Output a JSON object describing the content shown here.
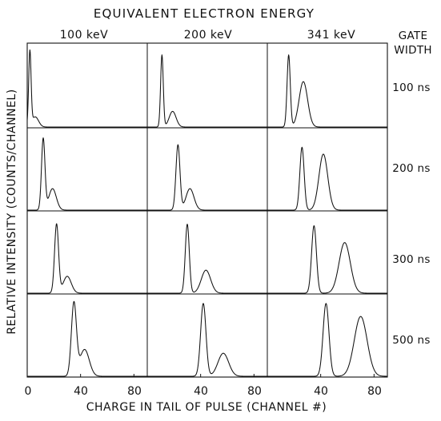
{
  "chart_data": {
    "type": "line",
    "title": "EQUIVALENT ELECTRON ENERGY",
    "xlabel": "CHARGE IN TAIL OF PULSE (CHANNEL #)",
    "ylabel": "RELATIVE INTENSITY (COUNTS/CHANNEL)",
    "column_header": [
      "100 keV",
      "200 keV",
      "341 keV"
    ],
    "row_header_title": [
      "GATE",
      "WIDTH"
    ],
    "row_header": [
      "100 ns",
      "200 ns",
      "300 ns",
      "500 ns"
    ],
    "x_ticks": [
      [
        "0",
        "40",
        "80"
      ],
      [
        "40",
        "80"
      ],
      [
        "40",
        "80"
      ]
    ],
    "xlim": [
      0,
      90
    ],
    "grid": false,
    "panels": [
      [
        {
          "peaks": [
            {
              "center": 2,
              "height": 0.95,
              "width": 0.9
            },
            {
              "center": 6,
              "height": 0.13,
              "width": 2.5
            }
          ]
        },
        {
          "peaks": [
            {
              "center": 11,
              "height": 0.92,
              "width": 1.0
            },
            {
              "center": 19,
              "height": 0.2,
              "width": 2.6
            }
          ]
        },
        {
          "peaks": [
            {
              "center": 16,
              "height": 0.92,
              "width": 1.2
            },
            {
              "center": 27,
              "height": 0.58,
              "width": 3.2
            }
          ]
        }
      ],
      [
        {
          "peaks": [
            {
              "center": 12,
              "height": 0.93,
              "width": 1.3
            },
            {
              "center": 19,
              "height": 0.28,
              "width": 2.8
            }
          ]
        },
        {
          "peaks": [
            {
              "center": 23,
              "height": 0.85,
              "width": 1.5
            },
            {
              "center": 32,
              "height": 0.28,
              "width": 3.0
            }
          ]
        },
        {
          "peaks": [
            {
              "center": 26,
              "height": 0.82,
              "width": 1.6
            },
            {
              "center": 42,
              "height": 0.73,
              "width": 3.3
            }
          ]
        }
      ],
      [
        {
          "peaks": [
            {
              "center": 22,
              "height": 0.9,
              "width": 1.5
            },
            {
              "center": 30,
              "height": 0.22,
              "width": 3.0
            }
          ]
        },
        {
          "peaks": [
            {
              "center": 30,
              "height": 0.9,
              "width": 1.5
            },
            {
              "center": 44,
              "height": 0.3,
              "width": 3.5
            }
          ]
        },
        {
          "peaks": [
            {
              "center": 35,
              "height": 0.88,
              "width": 1.8
            },
            {
              "center": 58,
              "height": 0.66,
              "width": 4.2
            }
          ]
        }
      ],
      [
        {
          "peaks": [
            {
              "center": 35,
              "height": 0.95,
              "width": 1.9
            },
            {
              "center": 43,
              "height": 0.35,
              "width": 3.5
            }
          ]
        },
        {
          "peaks": [
            {
              "center": 42,
              "height": 0.95,
              "width": 2.0
            },
            {
              "center": 57,
              "height": 0.3,
              "width": 4.0
            }
          ]
        },
        {
          "peaks": [
            {
              "center": 44,
              "height": 0.95,
              "width": 2.2
            },
            {
              "center": 70,
              "height": 0.78,
              "width": 4.8
            }
          ]
        }
      ]
    ]
  }
}
